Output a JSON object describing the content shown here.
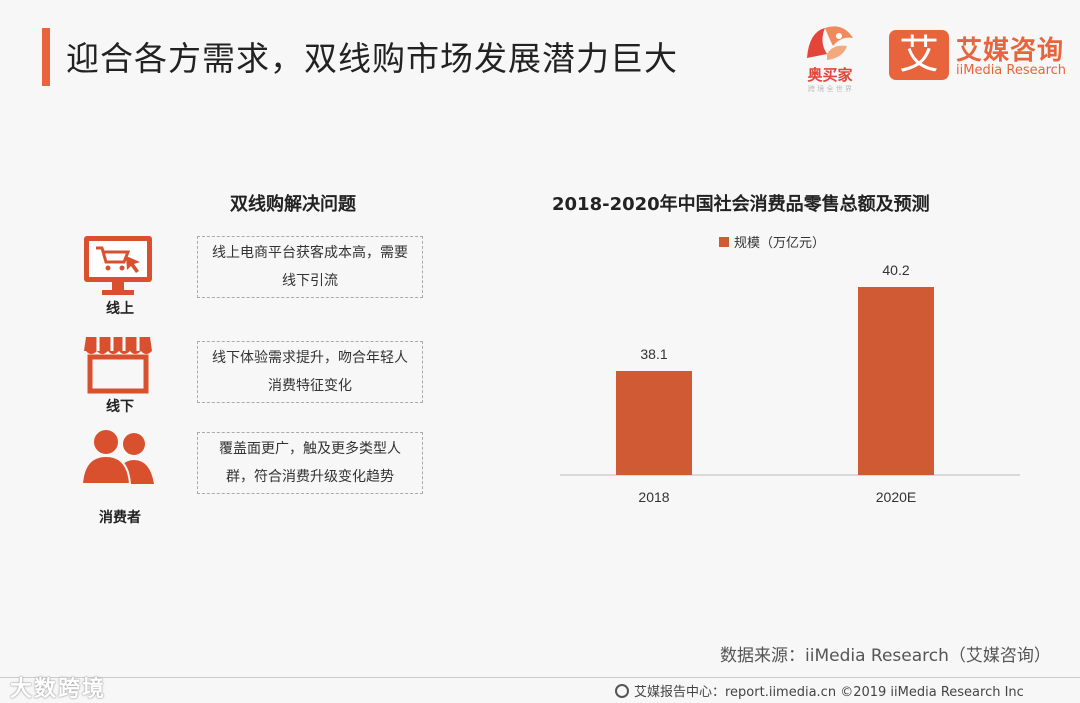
{
  "header": {
    "title": "迎合各方需求，双线购市场发展潜力巨大",
    "logo_left_text": "奥买家",
    "logo_left_sub": "跨 境 全 世 界",
    "logo_right_glyph": "艾",
    "logo_right_cn": "艾媒咨询",
    "logo_right_en": "iiMedia Research"
  },
  "left_panel": {
    "heading": "双线购解决问题",
    "items": [
      {
        "label": "线上",
        "icon": "monitor-cart-icon",
        "text": "线上电商平台获客成本高，需要线下引流"
      },
      {
        "label": "线下",
        "icon": "storefront-icon",
        "text": "线下体验需求提升，吻合年轻人消费特征变化"
      },
      {
        "label": "消费者",
        "icon": "people-icon",
        "text": "覆盖面更广，触及更多类型人群，符合消费升级变化趋势"
      }
    ]
  },
  "chart_data": {
    "type": "bar",
    "title": "2018-2020年中国社会消费品零售总额及预测",
    "categories": [
      "2018",
      "2020E"
    ],
    "series": [
      {
        "name": "规模（万亿元）",
        "values": [
          38.1,
          40.2
        ]
      }
    ],
    "data_labels": [
      "38.1",
      "40.2"
    ],
    "ylim": [
      35.5,
      41
    ],
    "legend": "top",
    "grid": false,
    "bar_color": "#d05a34"
  },
  "footer": {
    "source": "数据来源：iiMedia Research（艾媒咨询）",
    "report": "艾媒报告中心：report.iimedia.cn  ©2019  iiMedia Research  Inc",
    "watermark": "大数跨境"
  },
  "colors": {
    "accent": "#e8643c",
    "bar": "#d05a34",
    "icon": "#d8502e"
  }
}
